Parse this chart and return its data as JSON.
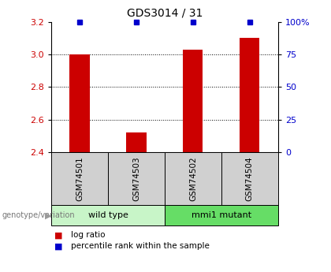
{
  "title": "GDS3014 / 31",
  "samples": [
    "GSM74501",
    "GSM74503",
    "GSM74502",
    "GSM74504"
  ],
  "log_ratios": [
    3.0,
    2.52,
    3.03,
    3.1
  ],
  "percentile_ranks": [
    100,
    100,
    100,
    100
  ],
  "ylim_left": [
    2.4,
    3.2
  ],
  "ylim_right": [
    0,
    100
  ],
  "yticks_left": [
    2.4,
    2.6,
    2.8,
    3.0,
    3.2
  ],
  "yticks_right": [
    0,
    25,
    50,
    75,
    100
  ],
  "ytick_labels_right": [
    "0",
    "25",
    "50",
    "75",
    "100%"
  ],
  "baseline": 2.4,
  "groups": [
    {
      "label": "wild type",
      "indices": [
        0,
        1
      ],
      "color": "#c8f5c8"
    },
    {
      "label": "mmi1 mutant",
      "indices": [
        2,
        3
      ],
      "color": "#66dd66"
    }
  ],
  "bar_color": "#cc0000",
  "dot_color": "#0000cc",
  "label_color_left": "#cc0000",
  "label_color_right": "#0000cc",
  "bg_color": "#ffffff",
  "plot_bg": "#ffffff",
  "sample_box_color": "#d0d0d0",
  "dotted_gridlines": [
    2.6,
    2.8,
    3.0
  ],
  "bar_width": 0.35
}
